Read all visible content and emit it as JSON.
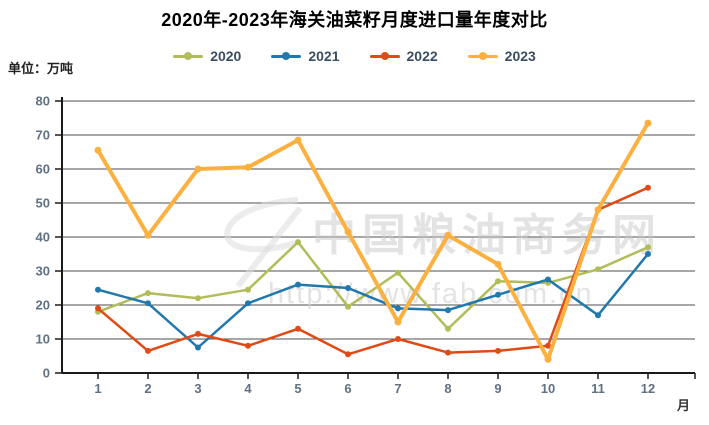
{
  "title": "2020年-2023年海关油菜籽月度进口量年度对比",
  "unit_label": "单位：万吨",
  "watermark": {
    "text": "中国粮油商务网",
    "url": "http://www.fab.com.cn"
  },
  "chart_data": {
    "type": "line",
    "title": "2020年-2023年海关油菜籽月度进口量年度对比",
    "xlabel": "月",
    "ylabel": "单位：万吨",
    "ylim": [
      0,
      80
    ],
    "ytick_step": 10,
    "grid": true,
    "legend_position": "top",
    "categories": [
      "1",
      "2",
      "3",
      "4",
      "5",
      "6",
      "7",
      "8",
      "9",
      "10",
      "11",
      "12"
    ],
    "series": [
      {
        "name": "2020",
        "color": "#b2bd59",
        "width": 2.5,
        "marker_r": 3,
        "values": [
          18,
          23.5,
          22,
          24.5,
          38.5,
          19.5,
          29.5,
          13,
          27,
          26.5,
          30.5,
          37
        ]
      },
      {
        "name": "2021",
        "color": "#2178ad",
        "width": 2.5,
        "marker_r": 3,
        "values": [
          24.5,
          20.5,
          7.5,
          20.5,
          26,
          25,
          19,
          18.5,
          23,
          27.5,
          17,
          35
        ]
      },
      {
        "name": "2022",
        "color": "#e04a15",
        "width": 2.5,
        "marker_r": 3,
        "values": [
          19,
          6.5,
          11.5,
          8,
          13,
          5.5,
          10,
          6,
          6.5,
          8,
          48,
          54.5
        ]
      },
      {
        "name": "2023",
        "color": "#fbb040",
        "width": 4,
        "marker_r": 3.5,
        "values": [
          65.5,
          40.5,
          60,
          60.5,
          68.5,
          41.5,
          15,
          40.5,
          32,
          4,
          48,
          73.5
        ]
      }
    ]
  },
  "colors": {
    "axis": "#1a1a1a",
    "gridline": "#4f4f4f",
    "tick_label": "#5f7183"
  }
}
